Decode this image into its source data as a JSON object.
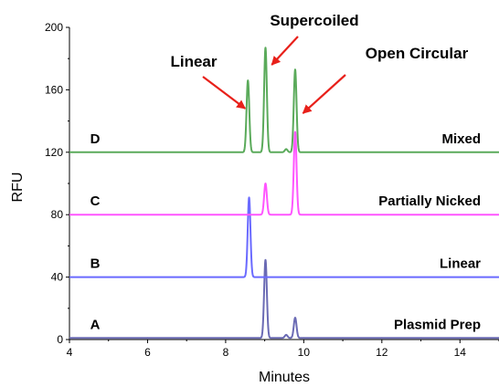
{
  "chart_data": {
    "type": "line",
    "xlabel": "Minutes",
    "ylabel": "RFU",
    "xlim": [
      4,
      15
    ],
    "ylim": [
      0,
      200
    ],
    "xticks": [
      4,
      6,
      8,
      10,
      12,
      14
    ],
    "yticks": [
      0,
      40,
      80,
      120,
      160,
      200
    ],
    "grid": false,
    "series": [
      {
        "letter": "A",
        "name": "Plasmid Prep",
        "color": "#6a6ab4",
        "baseline": 1,
        "peaks": [
          {
            "x": 9.02,
            "height": 50
          },
          {
            "x": 9.78,
            "height": 13
          },
          {
            "x": 9.55,
            "height": 2
          }
        ]
      },
      {
        "letter": "B",
        "name": "Linear",
        "color": "#6a6aff",
        "baseline": 40,
        "peaks": [
          {
            "x": 8.6,
            "height": 51
          }
        ]
      },
      {
        "letter": "C",
        "name": "Partially Nicked",
        "color": "#ff55ff",
        "baseline": 80,
        "peaks": [
          {
            "x": 9.02,
            "height": 20
          },
          {
            "x": 9.78,
            "height": 53
          }
        ]
      },
      {
        "letter": "D",
        "name": "Mixed",
        "color": "#5aaa5a",
        "baseline": 120,
        "peaks": [
          {
            "x": 8.57,
            "height": 46
          },
          {
            "x": 9.02,
            "height": 67
          },
          {
            "x": 9.78,
            "height": 53
          },
          {
            "x": 9.55,
            "height": 2
          }
        ]
      }
    ],
    "annotations": [
      {
        "label": "Linear",
        "target": {
          "x": 8.5,
          "y": 148
        }
      },
      {
        "label": "Supercoiled",
        "target": {
          "x": 9.18,
          "y": 176
        }
      },
      {
        "label": "Open Circular",
        "target": {
          "x": 9.98,
          "y": 145
        }
      }
    ]
  }
}
